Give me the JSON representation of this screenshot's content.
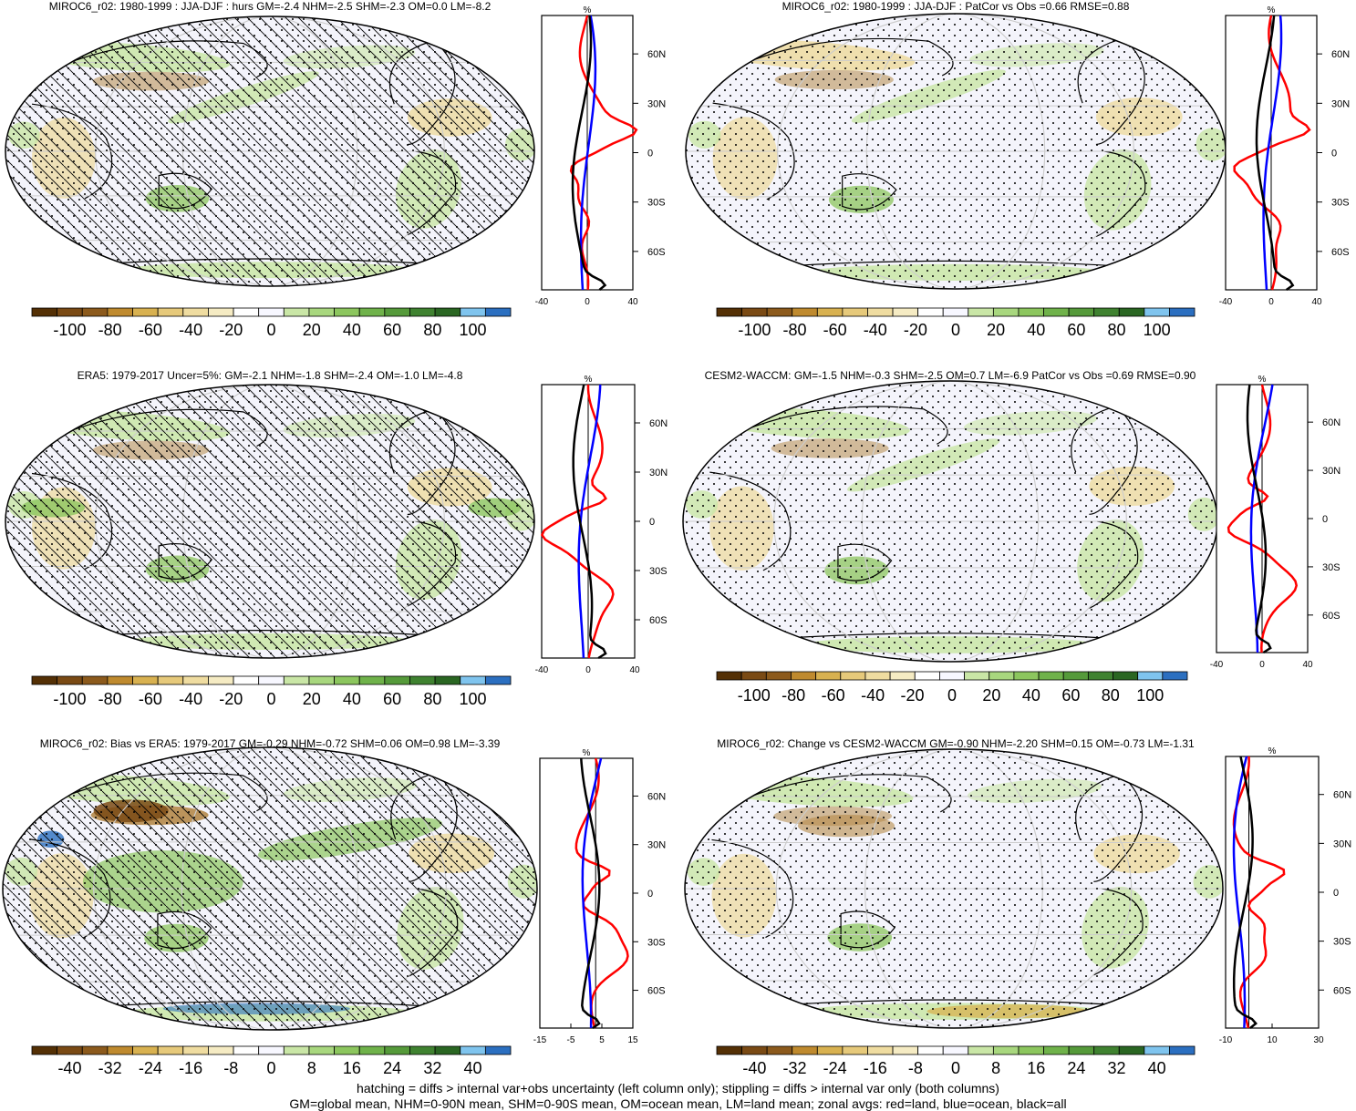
{
  "panels": [
    {
      "title": "MIROC6_r02: 1980-1999 : JJA-DJF : hurs GM=-2.4 NHM=-2.5 SHM=-2.3 OM=0.0 LM=-8.2",
      "hatch": true,
      "x_ticks": [
        "-40",
        "0",
        "40"
      ],
      "colorbar": [
        "-100",
        "-80",
        "-60",
        "-40",
        "-20",
        "0",
        "20",
        "40",
        "60",
        "80",
        "100"
      ]
    },
    {
      "title": "MIROC6_r02: 1980-1999 : JJA-DJF : PatCor vs Obs =0.66 RMSE=0.88",
      "hatch": false,
      "x_ticks": [
        "-40",
        "0",
        "40"
      ],
      "colorbar": [
        "-100",
        "-80",
        "-60",
        "-40",
        "-20",
        "0",
        "20",
        "40",
        "60",
        "80",
        "100"
      ]
    },
    {
      "title": "ERA5: 1979-2017 Uncer=5%: GM=-2.1 NHM=-1.8 SHM=-2.4 OM=-1.0 LM=-4.8",
      "hatch": true,
      "x_ticks": [
        "-40",
        "0",
        "40"
      ],
      "colorbar": [
        "-100",
        "-80",
        "-60",
        "-40",
        "-20",
        "0",
        "20",
        "40",
        "60",
        "80",
        "100"
      ]
    },
    {
      "title": "CESM2-WACCM: GM=-1.5 NHM=-0.3 SHM=-2.5 OM=0.7 LM=-6.9 PatCor vs Obs =0.69 RMSE=0.90",
      "hatch": false,
      "x_ticks": [
        "-40",
        "0",
        "40"
      ],
      "colorbar": [
        "-100",
        "-80",
        "-60",
        "-40",
        "-20",
        "0",
        "20",
        "40",
        "60",
        "80",
        "100"
      ]
    },
    {
      "title": "MIROC6_r02: Bias vs ERA5: 1979-2017 GM=-0.29 NHM=-0.72 SHM=0.06 OM=0.98 LM=-3.39",
      "hatch": true,
      "x_ticks": [
        "-15",
        "-5",
        "5",
        "15"
      ],
      "colorbar": [
        "-40",
        "-32",
        "-24",
        "-16",
        "-8",
        "0",
        "8",
        "16",
        "24",
        "32",
        "40"
      ]
    },
    {
      "title": "MIROC6_r02: Change vs CESM2-WACCM GM=-0.90 NHM=-2.20 SHM=0.15 OM=-0.73 LM=-1.31",
      "hatch": false,
      "x_ticks": [
        "-10",
        "10",
        "30"
      ],
      "colorbar": [
        "-40",
        "-32",
        "-24",
        "-16",
        "-8",
        "0",
        "8",
        "16",
        "24",
        "32",
        "40"
      ]
    }
  ],
  "lat_ticks": [
    "60N",
    "30N",
    "0",
    "30S",
    "60S"
  ],
  "unit": "%",
  "colorbar_colors": [
    "#543005",
    "#7a4a14",
    "#8c5a1c",
    "#bf8a2e",
    "#d8b150",
    "#e6c97a",
    "#efdca0",
    "#f5ebc3",
    "#ffffff",
    "#f7f7ff",
    "#c9e6a6",
    "#a8d77e",
    "#8cc65e",
    "#6fb24a",
    "#559a3a",
    "#3f8230",
    "#2a6622",
    "#7fc4ee",
    "#2b6fc0"
  ],
  "zonal_colors": {
    "land": "#ff0000",
    "ocean": "#0000ff",
    "all": "#000000"
  },
  "footer": [
    "hatching = diffs > internal var+obs uncertainty (left column only); stippling = diffs > internal var only (both columns)",
    "GM=global mean, NHM=0-90N mean, SHM=0-90S mean, OM=ocean mean, LM=land mean; zonal avgs: red=land, blue=ocean, black=all"
  ]
}
